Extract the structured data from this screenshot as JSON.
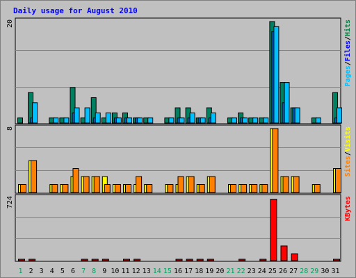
{
  "chart_data": {
    "type": "bar",
    "title": "Daily usage for August 2010",
    "days": [
      "1",
      "2",
      "3",
      "4",
      "5",
      "6",
      "7",
      "8",
      "9",
      "10",
      "11",
      "12",
      "13",
      "14",
      "15",
      "16",
      "17",
      "18",
      "19",
      "20",
      "21",
      "22",
      "23",
      "24",
      "25",
      "26",
      "27",
      "28",
      "29",
      "30",
      "31"
    ],
    "weekend_days": [
      "1",
      "7",
      "8",
      "14",
      "15",
      "21",
      "22",
      "28",
      "29"
    ],
    "panels": [
      {
        "id": "hits-files-pages",
        "ymax_label": "20",
        "ylim": [
          0,
          20
        ],
        "legend": [
          {
            "label": "Pages",
            "color": "#00c0ff"
          },
          {
            "label": "/",
            "color": "#000000"
          },
          {
            "label": "Files",
            "color": "#0000ff"
          },
          {
            "label": "/",
            "color": "#000000"
          },
          {
            "label": "Hits",
            "color": "#008040"
          }
        ],
        "series": [
          {
            "name": "Hits",
            "color": "#008060",
            "values": [
              1,
              6,
              0,
              1,
              1,
              7,
              1,
              5,
              1,
              2,
              2,
              1,
              1,
              0,
              1,
              3,
              3,
              1,
              3,
              0,
              1,
              2,
              1,
              1,
              20,
              8,
              3,
              0,
              1,
              0,
              6
            ]
          },
          {
            "name": "Files",
            "color": "#0060c0",
            "values": [
              0,
              1,
              0,
              0,
              0,
              2,
              0,
              1,
              0,
              1,
              1,
              1,
              0,
              0,
              0,
              1,
              1,
              1,
              1,
              0,
              0,
              1,
              0,
              0,
              18,
              4,
              3,
              0,
              0,
              0,
              1
            ]
          },
          {
            "name": "Pages",
            "color": "#00c0ff",
            "values": [
              0,
              4,
              0,
              1,
              1,
              3,
              3,
              2,
              2,
              1,
              1,
              1,
              1,
              0,
              1,
              1,
              2,
              1,
              2,
              0,
              1,
              1,
              1,
              1,
              19,
              8,
              3,
              0,
              1,
              0,
              3
            ]
          }
        ]
      },
      {
        "id": "visits-sites",
        "ymax_label": "8",
        "ylim": [
          0,
          8
        ],
        "legend": [
          {
            "label": "Sites",
            "color": "#ff8000"
          },
          {
            "label": "/",
            "color": "#000000"
          },
          {
            "label": "Visits",
            "color": "#ffff00"
          }
        ],
        "series": [
          {
            "name": "Visits",
            "color": "#ffff00",
            "values": [
              1,
              4,
              0,
              1,
              1,
              2,
              2,
              2,
              2,
              1,
              1,
              1,
              1,
              0,
              1,
              1,
              2,
              1,
              2,
              0,
              1,
              1,
              1,
              1,
              8,
              2,
              2,
              0,
              1,
              0,
              3
            ]
          },
          {
            "name": "Sites",
            "color": "#ff8000",
            "values": [
              1,
              4,
              0,
              1,
              1,
              3,
              2,
              2,
              1,
              1,
              1,
              2,
              1,
              0,
              1,
              2,
              2,
              1,
              2,
              0,
              1,
              1,
              1,
              1,
              8,
              2,
              2,
              0,
              1,
              0,
              3
            ]
          }
        ]
      },
      {
        "id": "kbytes",
        "ymax_label": "724",
        "ylim": [
          0,
          724
        ],
        "legend": [
          {
            "label": "KBytes",
            "color": "#ff0000"
          }
        ],
        "series": [
          {
            "name": "KBytes",
            "color": "#ff0000",
            "values": [
              10,
              10,
              0,
              0,
              0,
              0,
              12,
              8,
              12,
              0,
              8,
              8,
              0,
              0,
              0,
              8,
              8,
              8,
              8,
              0,
              0,
              8,
              0,
              8,
              710,
              170,
              80,
              0,
              0,
              0,
              12
            ]
          }
        ]
      }
    ]
  }
}
